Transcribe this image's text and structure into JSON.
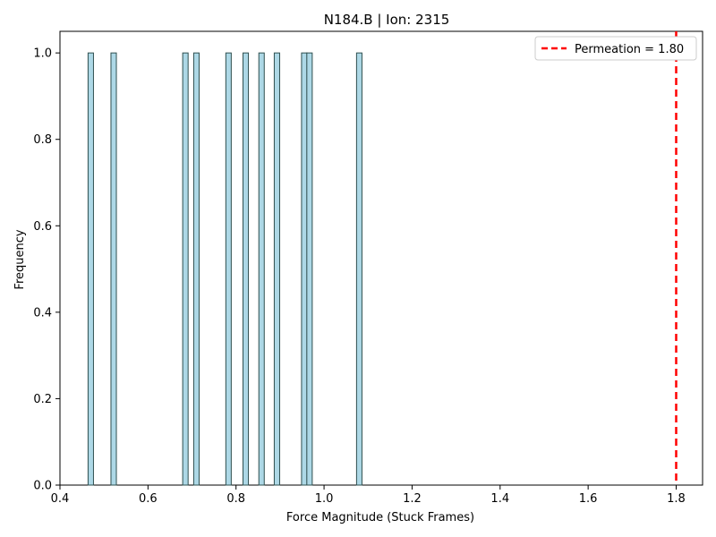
{
  "chart_data": {
    "type": "bar",
    "title": "N184.B | Ion: 2315",
    "xlabel": "Force Magnitude (Stuck Frames)",
    "ylabel": "Frequency",
    "xlim": [
      0.4,
      1.86
    ],
    "ylim": [
      0.0,
      1.05
    ],
    "xticks": [
      "0.4",
      "0.6",
      "0.8",
      "1.0",
      "1.2",
      "1.4",
      "1.6",
      "1.8"
    ],
    "yticks": [
      "0.0",
      "0.2",
      "0.4",
      "0.6",
      "0.8",
      "1.0"
    ],
    "bin_width": 0.0123,
    "bars": [
      {
        "x": 0.47,
        "value": 1
      },
      {
        "x": 0.522,
        "value": 1
      },
      {
        "x": 0.685,
        "value": 1
      },
      {
        "x": 0.71,
        "value": 1
      },
      {
        "x": 0.783,
        "value": 1
      },
      {
        "x": 0.822,
        "value": 1
      },
      {
        "x": 0.858,
        "value": 1
      },
      {
        "x": 0.893,
        "value": 1
      },
      {
        "x": 0.955,
        "value": 1
      },
      {
        "x": 0.967,
        "value": 1
      },
      {
        "x": 1.08,
        "value": 1
      }
    ],
    "bar_color": "#add8e6",
    "bar_edge_color": "#2f4f4f",
    "reference_line": {
      "x": 1.8,
      "label": "Permeation = 1.80",
      "color": "#ff0000",
      "style": "dashed"
    },
    "legend_position": "top-right",
    "grid": false
  }
}
